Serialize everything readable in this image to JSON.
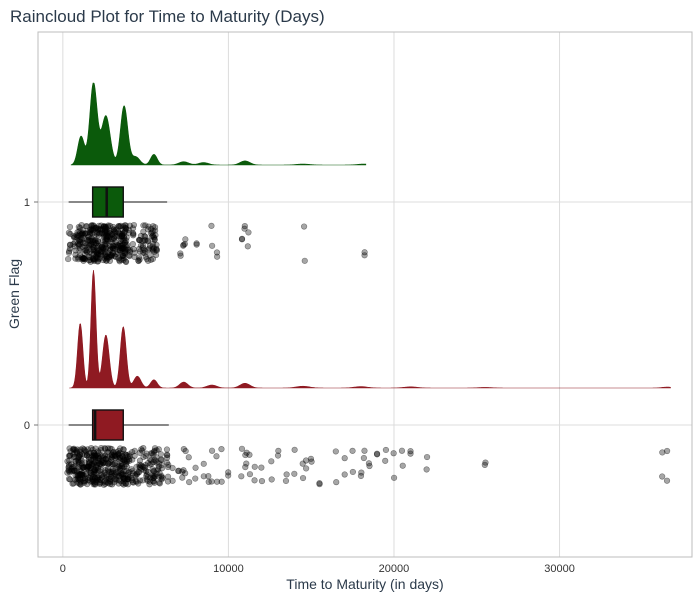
{
  "chart_data": {
    "type": "raincloud",
    "title": "Raincloud Plot for Time to Maturity (Days)",
    "xlabel": "Time to Maturity (in days)",
    "ylabel": "Green Flag",
    "xlim": [
      -1500,
      38000
    ],
    "x_ticks": [
      0,
      10000,
      20000,
      30000
    ],
    "x_tick_labels": [
      "0",
      "10000",
      "20000",
      "30000"
    ],
    "grid": true,
    "groups": [
      {
        "label": "1",
        "color": "#0b5a0b",
        "box": {
          "whisker_low": 350,
          "q1": 1800,
          "median": 2650,
          "q3": 3650,
          "whisker_high": 6300
        },
        "density_peaks": [
          {
            "x": 1100,
            "h": 0.35,
            "w": 200
          },
          {
            "x": 1850,
            "h": 1.0,
            "w": 220
          },
          {
            "x": 2600,
            "h": 0.6,
            "w": 260
          },
          {
            "x": 3700,
            "h": 0.72,
            "w": 220
          },
          {
            "x": 4400,
            "h": 0.1,
            "w": 250
          },
          {
            "x": 5500,
            "h": 0.13,
            "w": 200
          },
          {
            "x": 7300,
            "h": 0.04,
            "w": 300
          },
          {
            "x": 8500,
            "h": 0.03,
            "w": 300
          },
          {
            "x": 11000,
            "h": 0.05,
            "w": 300
          },
          {
            "x": 14500,
            "h": 0.012,
            "w": 400
          },
          {
            "x": 18200,
            "h": 0.012,
            "w": 400
          }
        ],
        "density_range": [
          500,
          18300
        ],
        "points": [
          400,
          700,
          900,
          1000,
          1100,
          1200,
          1300,
          1400,
          1500,
          1600,
          1700,
          1800,
          1850,
          1900,
          2000,
          2050,
          2100,
          2200,
          2300,
          2400,
          2500,
          2550,
          2600,
          2650,
          2700,
          2800,
          2900,
          3000,
          3100,
          3200,
          3300,
          3400,
          3500,
          3600,
          3650,
          3700,
          3750,
          3800,
          4000,
          4300,
          4600,
          4800,
          5000,
          5200,
          5400,
          5500,
          5600,
          7100,
          7300,
          7400,
          8100,
          9000,
          9300,
          10800,
          11000,
          11200,
          14600,
          18200
        ]
      },
      {
        "label": "0",
        "color": "#8f1a22",
        "box": {
          "whisker_low": 350,
          "q1": 1800,
          "median": 1950,
          "q3": 3650,
          "whisker_high": 6400
        },
        "density_peaks": [
          {
            "x": 1050,
            "h": 0.55,
            "w": 160
          },
          {
            "x": 1850,
            "h": 1.0,
            "w": 150
          },
          {
            "x": 2600,
            "h": 0.45,
            "w": 200
          },
          {
            "x": 3650,
            "h": 0.52,
            "w": 180
          },
          {
            "x": 4500,
            "h": 0.1,
            "w": 220
          },
          {
            "x": 5500,
            "h": 0.07,
            "w": 200
          },
          {
            "x": 7300,
            "h": 0.05,
            "w": 250
          },
          {
            "x": 9000,
            "h": 0.025,
            "w": 300
          },
          {
            "x": 11000,
            "h": 0.04,
            "w": 300
          },
          {
            "x": 14500,
            "h": 0.015,
            "w": 400
          },
          {
            "x": 18000,
            "h": 0.012,
            "w": 400
          },
          {
            "x": 21000,
            "h": 0.01,
            "w": 400
          },
          {
            "x": 25500,
            "h": 0.005,
            "w": 400
          },
          {
            "x": 36500,
            "h": 0.008,
            "w": 300
          }
        ],
        "density_range": [
          400,
          36700
        ],
        "points": [
          350,
          450,
          600,
          700,
          800,
          900,
          1000,
          1050,
          1100,
          1200,
          1300,
          1400,
          1500,
          1600,
          1700,
          1800,
          1850,
          1900,
          1950,
          2000,
          2100,
          2200,
          2300,
          2400,
          2500,
          2600,
          2700,
          2800,
          2900,
          3000,
          3100,
          3200,
          3300,
          3400,
          3500,
          3600,
          3650,
          3700,
          3800,
          3900,
          4000,
          4200,
          4400,
          4600,
          4800,
          5000,
          5200,
          5400,
          5500,
          5600,
          5800,
          6000,
          6300,
          6600,
          7000,
          7200,
          7300,
          7400,
          7600,
          8000,
          8500,
          8800,
          9000,
          9300,
          9600,
          10000,
          10800,
          11000,
          11100,
          11300,
          11600,
          12000,
          12600,
          13000,
          13500,
          14000,
          14500,
          14700,
          15000,
          15500,
          16500,
          17000,
          17500,
          18000,
          18200,
          18500,
          19000,
          19500,
          20000,
          20500,
          21000,
          22000,
          25500,
          36200,
          36500
        ]
      }
    ]
  }
}
